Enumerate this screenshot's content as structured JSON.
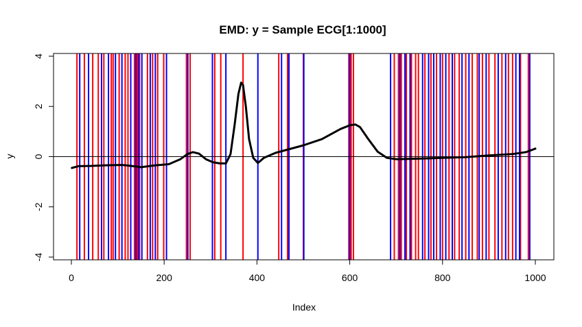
{
  "chart_data": {
    "type": "line",
    "title": "EMD: y = Sample ECG[1:1000]",
    "xlabel": "Index",
    "ylabel": "y",
    "xlim": [
      0,
      1000
    ],
    "ylim": [
      -4,
      4
    ],
    "xticks": [
      0,
      200,
      400,
      600,
      800,
      1000
    ],
    "yticks": [
      -4,
      -2,
      0,
      2,
      4
    ],
    "reference_line_y": 0,
    "signal": {
      "color": "#000000",
      "x": [
        1,
        15,
        40,
        80,
        110,
        130,
        150,
        180,
        210,
        235,
        250,
        262,
        275,
        290,
        305,
        320,
        333,
        343,
        352,
        360,
        366,
        370,
        376,
        383,
        392,
        402,
        415,
        440,
        470,
        500,
        540,
        580,
        600,
        612,
        622,
        640,
        660,
        680,
        700,
        750,
        800,
        850,
        900,
        950,
        980,
        1000
      ],
      "y": [
        -0.45,
        -0.38,
        -0.37,
        -0.34,
        -0.33,
        -0.37,
        -0.42,
        -0.35,
        -0.3,
        -0.1,
        0.1,
        0.18,
        0.12,
        -0.1,
        -0.22,
        -0.27,
        -0.27,
        0.1,
        1.3,
        2.5,
        2.95,
        2.85,
        2.0,
        0.7,
        -0.05,
        -0.25,
        -0.05,
        0.15,
        0.3,
        0.45,
        0.7,
        1.1,
        1.25,
        1.28,
        1.18,
        0.7,
        0.2,
        -0.05,
        -0.1,
        -0.08,
        -0.05,
        -0.02,
        0.05,
        0.1,
        0.18,
        0.32
      ]
    },
    "red_lines_x": [
      12,
      28,
      46,
      58,
      70,
      86,
      90,
      103,
      116,
      122,
      136,
      142,
      147,
      164,
      175,
      186,
      199,
      248,
      256,
      309,
      322,
      370,
      447,
      466,
      500,
      598,
      603,
      608,
      696,
      705,
      711,
      722,
      733,
      742,
      748,
      762,
      775,
      787,
      800,
      814,
      826,
      836,
      850,
      864,
      875,
      886,
      900,
      913,
      928,
      942,
      951,
      968,
      985
    ],
    "blue_lines_x": [
      18,
      37,
      65,
      80,
      95,
      109,
      128,
      139,
      145,
      152,
      170,
      181,
      205,
      251,
      304,
      333,
      402,
      453,
      469,
      501,
      600,
      688,
      708,
      719,
      730,
      757,
      770,
      781,
      795,
      807,
      821,
      842,
      857,
      879,
      894,
      920,
      936,
      958,
      966,
      988
    ],
    "red_color": "#ff0000",
    "blue_color": "#0000ff"
  }
}
